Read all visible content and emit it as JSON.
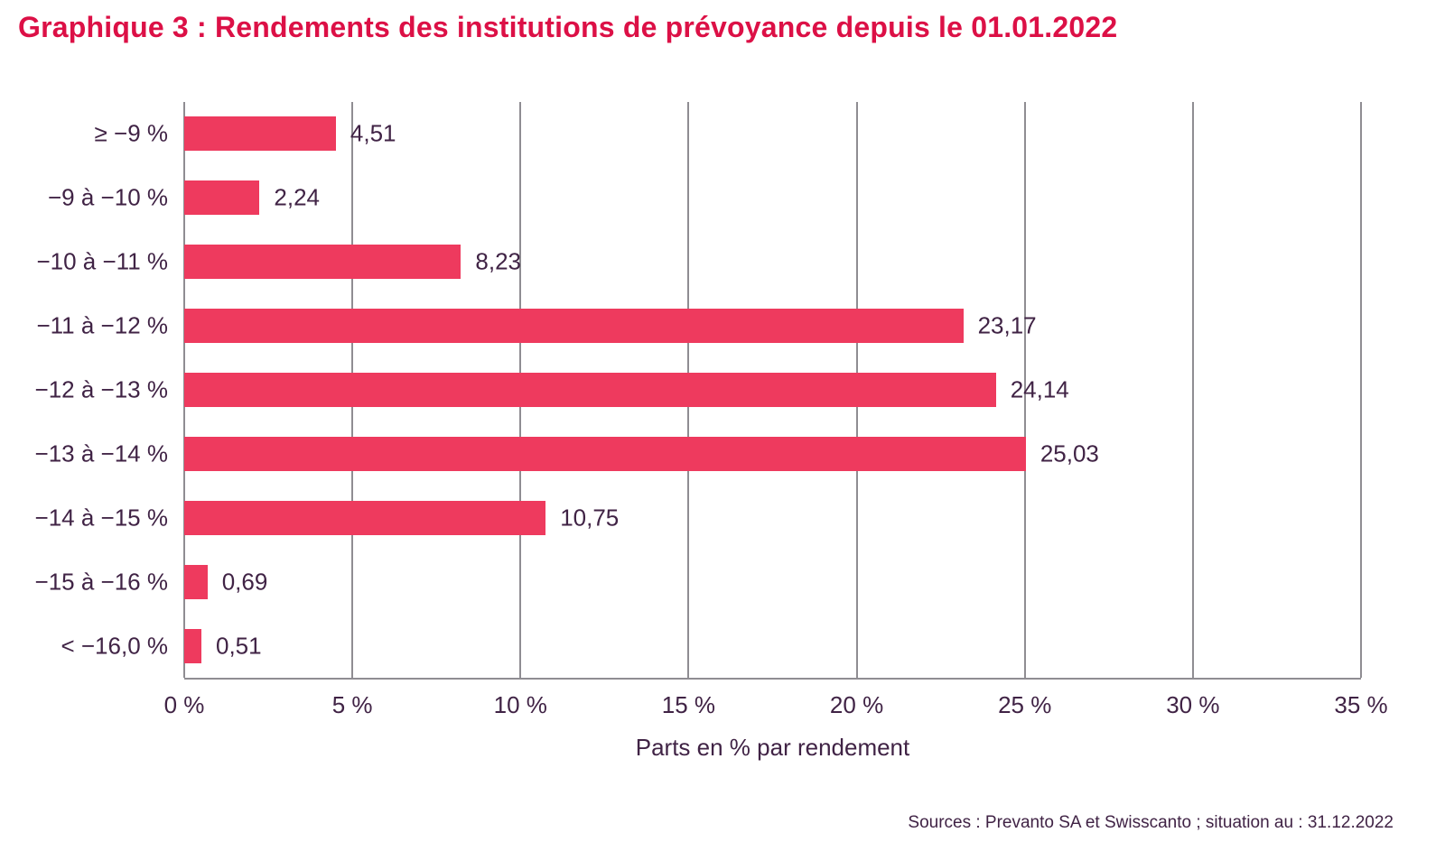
{
  "page": {
    "title": "Graphique 3 : Rendements des institutions de prévoyance depuis le 01.01.2022",
    "source_note": "Sources : Prevanto SA et Swisscanto ; situation au : 31.12.2022"
  },
  "colors": {
    "title": "#dc1046",
    "bar": "#ee3a5e",
    "text": "#402345",
    "grid": "#8f8d92"
  },
  "chart_data": {
    "type": "bar",
    "orientation": "horizontal",
    "title": "Graphique 3 : Rendements des institutions de prévoyance depuis le 01.01.2022",
    "categories": [
      "≥ −9 %",
      "−9 à −10 %",
      "−10 à −11 %",
      "−11 à −12 %",
      "−12 à −13 %",
      "−13 à −14 %",
      "−14 à −15 %",
      "−15 à −16 %",
      "< −16,0 %"
    ],
    "values": [
      4.51,
      2.24,
      8.23,
      23.17,
      24.14,
      25.03,
      10.75,
      0.69,
      0.51
    ],
    "value_labels": [
      "4,51",
      "2,24",
      "8,23",
      "23,17",
      "24,14",
      "25,03",
      "10,75",
      "0,69",
      "0,51"
    ],
    "xlabel": "Parts en % par rendement",
    "xlim": [
      0,
      35
    ],
    "xtick_values": [
      0,
      5,
      10,
      15,
      20,
      25,
      30,
      35
    ],
    "xtick_labels": [
      "0 %",
      "5 %",
      "10 %",
      "15 %",
      "20 %",
      "25 %",
      "30 %",
      "35 %"
    ],
    "grid": "vertical-only",
    "legend": "none",
    "bar_color": "#ee3a5e",
    "source": "Sources : Prevanto SA et Swisscanto ; situation au : 31.12.2022"
  }
}
